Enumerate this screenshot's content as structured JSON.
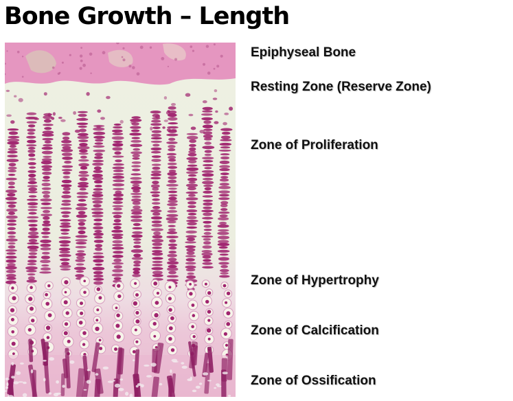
{
  "title": "Bone Growth – Length",
  "labels": [
    "Epiphyseal Bone",
    "Resting Zone (Reserve Zone)",
    "Zone of Proliferation",
    "Zone of Hypertrophy",
    "Zone of Calcification",
    "Zone of Ossification"
  ],
  "colors": {
    "bone_pink": "#e596c0",
    "cartilage_matrix": "#ecefdf",
    "nucleus_magenta": "#a0246f",
    "cell_pale": "#f7f4ea",
    "matrix_pink": "#e9b6cf",
    "label_text": "#111111"
  }
}
